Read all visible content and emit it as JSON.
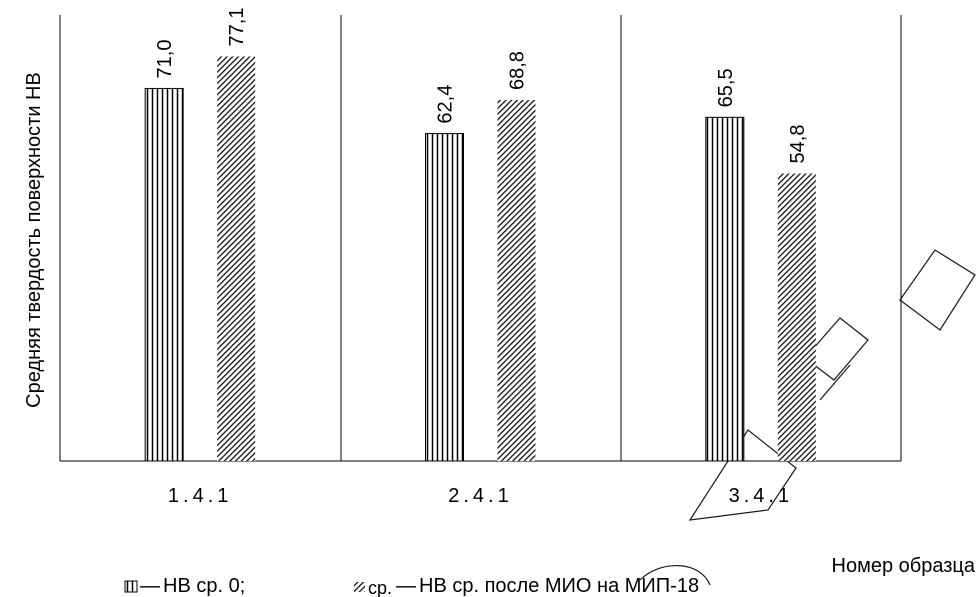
{
  "chart_data": {
    "type": "bar",
    "title": "",
    "xlabel": "Номер образца",
    "ylabel": "Средняя твердость поверхности  НВ",
    "categories": [
      "1.4.1",
      "2.4.1",
      "3.4.1"
    ],
    "ylim": [
      0,
      85
    ],
    "grid": false,
    "series": [
      {
        "name": "НВ ср. 0;",
        "values": [
          71.0,
          62.4,
          65.5
        ],
        "labels": [
          "71,0",
          "62,4",
          "65,5"
        ],
        "pattern": "vertical-lines"
      },
      {
        "name": "НВ ср. после МИО на МИП-18",
        "values": [
          77.1,
          68.8,
          54.8
        ],
        "labels": [
          "77,1",
          "68,8",
          "54,8"
        ],
        "pattern": "diagonal-hatch"
      }
    ],
    "legend": {
      "placement": "bottom",
      "entries": [
        {
          "dash": "—",
          "text": "НВ ср. 0;"
        },
        {
          "prefix": "ср.",
          "dash": "—",
          "text": "НВ ср. после МИО на МИП-18"
        }
      ]
    }
  },
  "colors": {
    "bar_fill": "#ffffff",
    "line": "#000000"
  }
}
